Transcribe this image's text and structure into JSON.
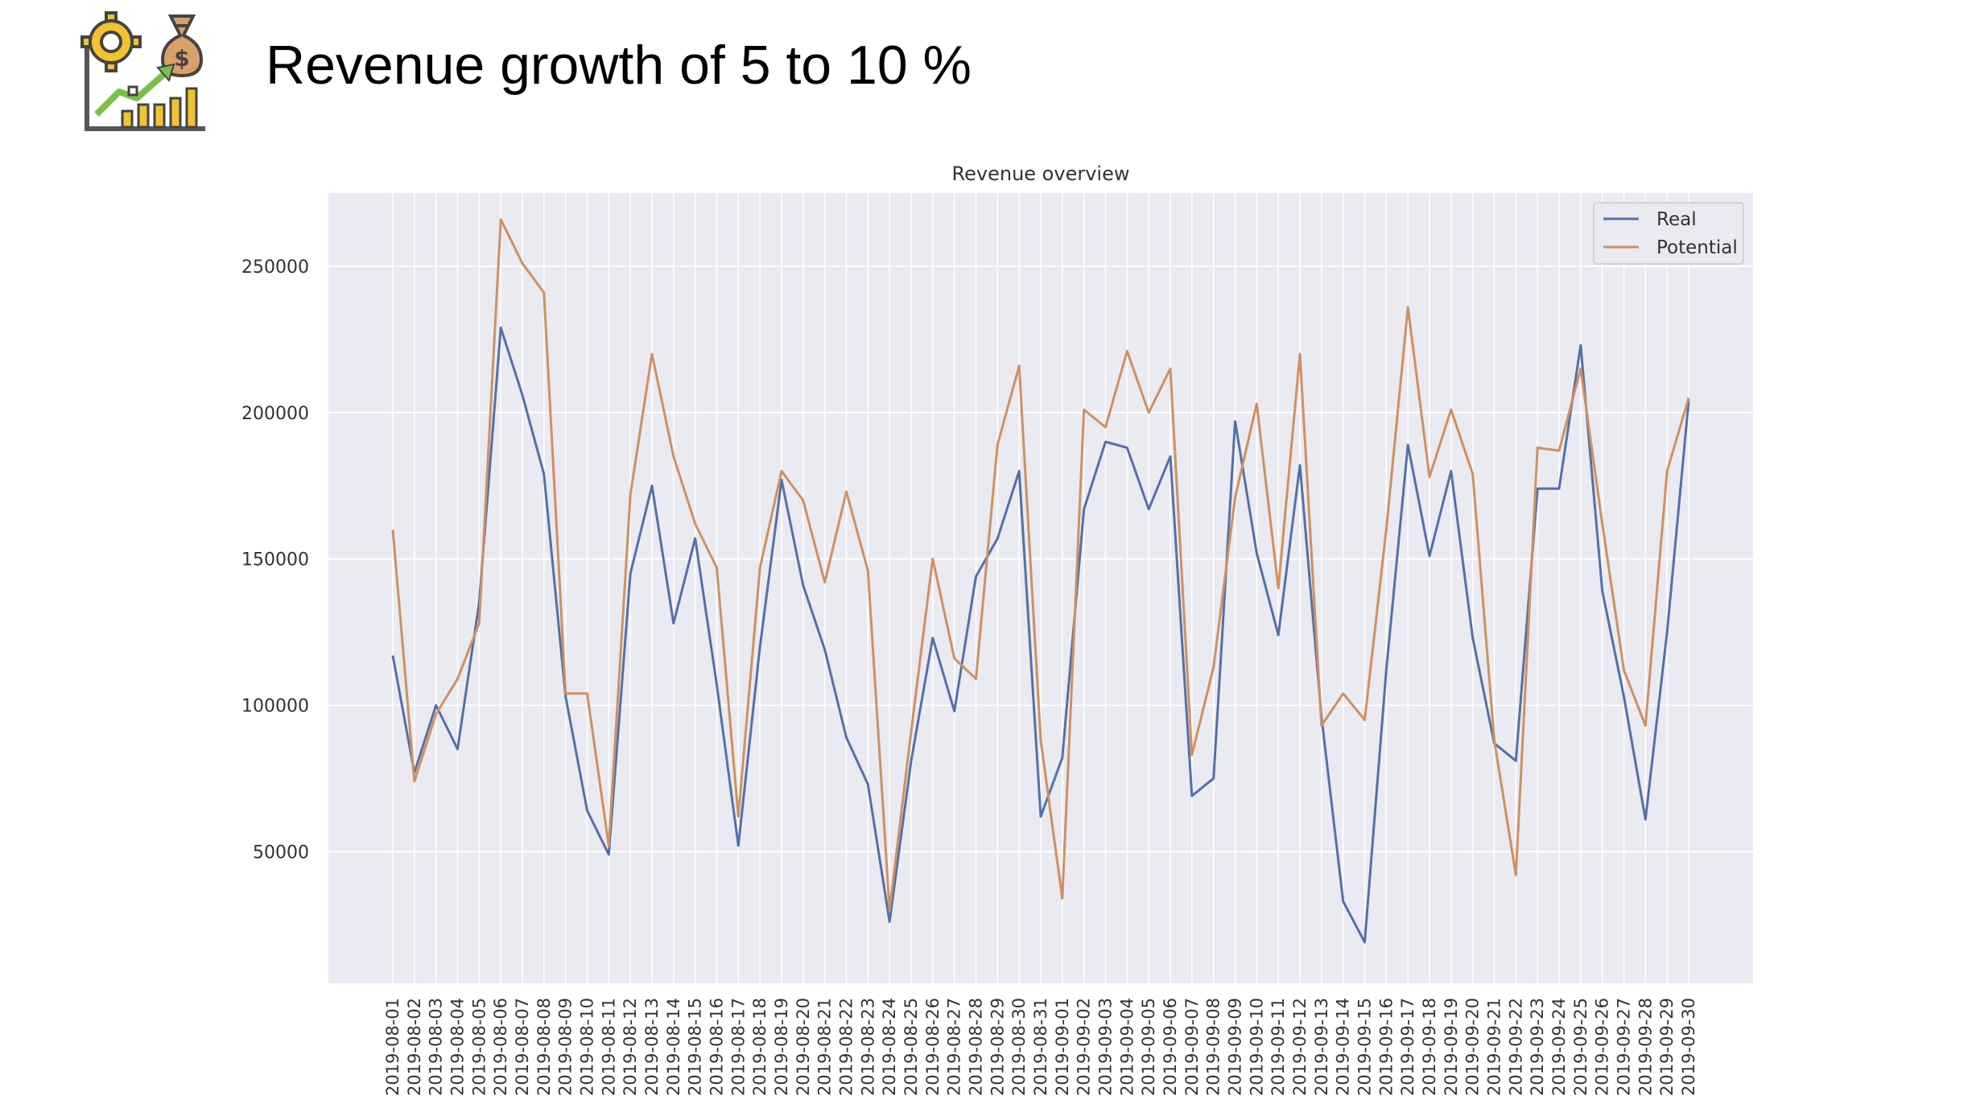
{
  "slide": {
    "title": "Revenue growth of 5 to 10 %",
    "logo_icon": "revenue-growth-icon"
  },
  "colors": {
    "real": "#5470a8",
    "potential": "#d1905e",
    "plot_bg": "#eaeaf2",
    "grid": "#ffffff"
  },
  "chart_data": {
    "type": "line",
    "title": "Revenue overview",
    "xlabel": "",
    "ylabel": "",
    "ylim": [
      5000,
      275000
    ],
    "yticks": [
      50000,
      100000,
      150000,
      200000,
      250000
    ],
    "grid": true,
    "legend_position": "top-right",
    "x": [
      "2019-08-01",
      "2019-08-02",
      "2019-08-03",
      "2019-08-04",
      "2019-08-05",
      "2019-08-06",
      "2019-08-07",
      "2019-08-08",
      "2019-08-09",
      "2019-08-10",
      "2019-08-11",
      "2019-08-12",
      "2019-08-13",
      "2019-08-14",
      "2019-08-15",
      "2019-08-16",
      "2019-08-17",
      "2019-08-18",
      "2019-08-19",
      "2019-08-20",
      "2019-08-21",
      "2019-08-22",
      "2019-08-23",
      "2019-08-24",
      "2019-08-25",
      "2019-08-26",
      "2019-08-27",
      "2019-08-28",
      "2019-08-29",
      "2019-08-30",
      "2019-08-31",
      "2019-09-01",
      "2019-09-02",
      "2019-09-03",
      "2019-09-04",
      "2019-09-05",
      "2019-09-06",
      "2019-09-07",
      "2019-09-08",
      "2019-09-09",
      "2019-09-10",
      "2019-09-11",
      "2019-09-12",
      "2019-09-13",
      "2019-09-14",
      "2019-09-15",
      "2019-09-16",
      "2019-09-17",
      "2019-09-18",
      "2019-09-19",
      "2019-09-20",
      "2019-09-21",
      "2019-09-22",
      "2019-09-23",
      "2019-09-24",
      "2019-09-25",
      "2019-09-26",
      "2019-09-27",
      "2019-09-28",
      "2019-09-29",
      "2019-09-30"
    ],
    "series": [
      {
        "name": "Real",
        "values": [
          117000,
          77000,
          100000,
          85000,
          135000,
          229000,
          206000,
          179000,
          103000,
          64000,
          49000,
          145000,
          175000,
          128000,
          157000,
          107000,
          52000,
          120000,
          177000,
          141000,
          119000,
          89000,
          73000,
          26000,
          81000,
          123000,
          98000,
          144000,
          157000,
          180000,
          62000,
          82000,
          167000,
          190000,
          188000,
          167000,
          185000,
          69000,
          75000,
          197000,
          152000,
          124000,
          182000,
          96000,
          33000,
          19000,
          112000,
          189000,
          151000,
          180000,
          123000,
          87000,
          81000,
          174000,
          174000,
          223000,
          139000,
          103000,
          61000,
          125000,
          204000
        ]
      },
      {
        "name": "Potential",
        "values": [
          160000,
          74000,
          97000,
          109000,
          128000,
          266000,
          251000,
          241000,
          104000,
          104000,
          52000,
          172000,
          220000,
          185000,
          162000,
          147000,
          62000,
          147000,
          180000,
          170000,
          142000,
          173000,
          146000,
          30000,
          91000,
          150000,
          116000,
          109000,
          189000,
          216000,
          88000,
          34000,
          201000,
          195000,
          221000,
          200000,
          215000,
          83000,
          113000,
          171000,
          203000,
          140000,
          220000,
          93000,
          104000,
          95000,
          160000,
          236000,
          178000,
          201000,
          179000,
          88000,
          42000,
          188000,
          187000,
          215000,
          162000,
          112000,
          93000,
          180000,
          205000
        ]
      }
    ]
  }
}
